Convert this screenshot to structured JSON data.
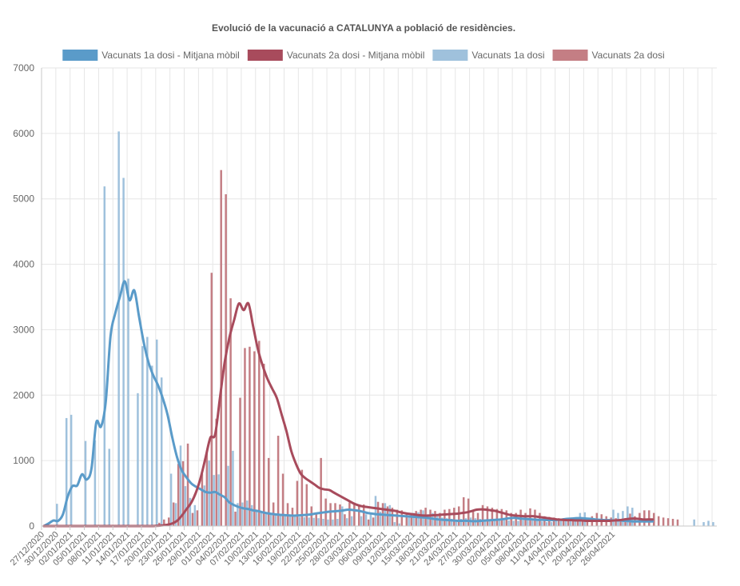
{
  "chart_data": {
    "type": "bar",
    "title": "Evolució de la vacunació a CATALUNYA a població de residències.",
    "xlabel": "",
    "ylabel": "",
    "ylim": [
      0,
      7000
    ],
    "y_ticks": [
      0,
      1000,
      2000,
      3000,
      4000,
      5000,
      6000,
      7000
    ],
    "grid": true,
    "legend_position": "top",
    "start_date": "27/12/2020",
    "x_tick_labels": [
      "27/12/2020",
      "30/12/2020",
      "02/01/2021",
      "05/01/2021",
      "08/01/2021",
      "11/01/2021",
      "14/01/2021",
      "17/01/2021",
      "20/01/2021",
      "23/01/2021",
      "26/01/2021",
      "29/01/2021",
      "01/02/2021",
      "04/02/2021",
      "07/02/2021",
      "10/02/2021",
      "13/02/2021",
      "16/02/2021",
      "19/02/2021",
      "22/02/2021",
      "25/02/2021",
      "28/02/2021",
      "03/03/2021",
      "06/03/2021",
      "09/03/2021",
      "12/03/2021",
      "15/03/2021",
      "18/03/2021",
      "21/03/2021",
      "24/03/2021",
      "27/03/2021",
      "30/03/2021",
      "02/04/2021",
      "05/04/2021",
      "08/04/2021",
      "11/04/2021",
      "14/04/2021",
      "17/04/2021",
      "20/04/2021",
      "23/04/2021",
      "26/04/2021"
    ],
    "series": [
      {
        "name": "Vacunats 1a dosi - Mitjana mòbil",
        "type": "line",
        "color": "#5a9bc9",
        "values": [
          0,
          40,
          85,
          80,
          180,
          450,
          610,
          620,
          790,
          710,
          880,
          1580,
          1520,
          1900,
          2900,
          3250,
          3510,
          3740,
          3450,
          3600,
          3200,
          2800,
          2500,
          2300,
          2150,
          1950,
          1700,
          1350,
          1050,
          850,
          740,
          650,
          600,
          560,
          520,
          510,
          520,
          480,
          440,
          360,
          320,
          290,
          270,
          260,
          240,
          230,
          210,
          195,
          185,
          175,
          170,
          165,
          160,
          160,
          165,
          170,
          175,
          190,
          200,
          210,
          220,
          225,
          230,
          240,
          250,
          245,
          235,
          220,
          200,
          190,
          180,
          175,
          170,
          165,
          160,
          155,
          150,
          145,
          140,
          135,
          130,
          120,
          110,
          100,
          95,
          90,
          85,
          80,
          80,
          80,
          75,
          75,
          80,
          85,
          90,
          95,
          100,
          110,
          120,
          125,
          115,
          110,
          105,
          100,
          95,
          95,
          90,
          90,
          95,
          100,
          110,
          115,
          120,
          120,
          115,
          110,
          100,
          95,
          90,
          90,
          85,
          85,
          80,
          75,
          70,
          70,
          70,
          70,
          70
        ]
      },
      {
        "name": "Vacunats 2a dosi - Mitjana mòbil",
        "type": "line",
        "color": "#a84b5c",
        "values": [
          0,
          0,
          0,
          0,
          0,
          0,
          0,
          0,
          0,
          0,
          0,
          0,
          0,
          0,
          0,
          0,
          0,
          0,
          0,
          0,
          0,
          0,
          0,
          0,
          5,
          10,
          20,
          40,
          80,
          160,
          260,
          360,
          520,
          750,
          1050,
          1350,
          1400,
          1950,
          2500,
          2880,
          3150,
          3400,
          3300,
          3400,
          3050,
          2700,
          2450,
          2250,
          2100,
          1950,
          1700,
          1450,
          1150,
          950,
          800,
          730,
          680,
          630,
          580,
          560,
          550,
          510,
          470,
          430,
          390,
          350,
          320,
          300,
          290,
          280,
          270,
          260,
          250,
          240,
          230,
          210,
          195,
          185,
          175,
          165,
          160,
          160,
          165,
          170,
          175,
          180,
          185,
          190,
          200,
          210,
          230,
          250,
          255,
          250,
          240,
          230,
          210,
          190,
          170,
          160,
          155,
          150,
          150,
          150,
          140,
          130,
          120,
          110,
          100,
          95,
          90,
          90,
          85,
          85,
          80,
          80,
          80,
          80,
          80,
          80,
          85,
          90,
          100,
          110,
          115,
          110,
          100,
          100,
          100
        ]
      },
      {
        "name": "Vacunats 1a dosi",
        "type": "bar",
        "color": "#9fc1dc",
        "values": [
          0,
          0,
          0,
          340,
          0,
          1650,
          1700,
          0,
          0,
          1300,
          0,
          1310,
          0,
          5190,
          1180,
          0,
          6030,
          5320,
          3780,
          0,
          2030,
          2750,
          2890,
          2450,
          2850,
          2270,
          0,
          800,
          350,
          1230,
          610,
          430,
          320,
          0,
          620,
          1000,
          780,
          790,
          0,
          920,
          1150,
          350,
          360,
          390,
          320,
          250,
          220,
          200,
          190,
          180,
          170,
          160,
          150,
          145,
          140,
          135,
          130,
          125,
          120,
          110,
          100,
          100,
          110,
          300,
          120,
          150,
          0,
          150,
          180,
          200,
          460,
          220,
          350,
          320,
          60,
          40,
          0,
          130,
          200,
          210,
          240,
          180,
          200,
          150,
          130,
          120,
          110,
          100,
          110,
          120,
          130,
          120,
          110,
          100,
          100,
          100,
          95,
          90,
          85,
          80,
          80,
          90,
          95,
          100,
          80,
          70,
          60,
          60,
          80,
          80,
          80,
          90,
          100,
          200,
          210,
          0,
          0,
          0,
          0,
          0,
          250,
          200,
          230,
          300,
          280,
          0,
          0,
          0,
          0,
          0,
          0,
          0,
          0,
          0,
          0,
          0,
          0,
          100,
          0,
          60,
          80,
          60
        ]
      },
      {
        "name": "Vacunats 2a dosi",
        "type": "bar",
        "color": "#c47e84",
        "values": [
          0,
          0,
          0,
          0,
          0,
          0,
          0,
          0,
          0,
          0,
          0,
          0,
          0,
          0,
          0,
          0,
          0,
          0,
          0,
          0,
          0,
          0,
          0,
          0,
          50,
          100,
          130,
          360,
          950,
          990,
          1260,
          200,
          240,
          800,
          1150,
          3870,
          1640,
          5440,
          5070,
          3480,
          220,
          1960,
          2720,
          2740,
          2670,
          2830,
          2480,
          1040,
          360,
          1380,
          800,
          350,
          280,
          690,
          860,
          640,
          300,
          200,
          1040,
          420,
          350,
          350,
          330,
          180,
          360,
          340,
          310,
          330,
          100,
          130,
          370,
          350,
          300,
          280,
          250,
          240,
          200,
          200,
          230,
          250,
          280,
          250,
          230,
          200,
          250,
          260,
          280,
          300,
          440,
          420,
          250,
          200,
          320,
          300,
          280,
          260,
          260,
          240,
          200,
          200,
          250,
          200,
          270,
          250,
          200,
          150,
          140,
          130,
          120,
          120,
          110,
          100,
          90,
          80,
          100,
          150,
          200,
          180,
          150,
          130,
          120,
          110,
          100,
          190,
          150,
          200,
          240,
          240,
          200,
          150,
          130,
          120,
          110,
          100
        ]
      }
    ]
  }
}
